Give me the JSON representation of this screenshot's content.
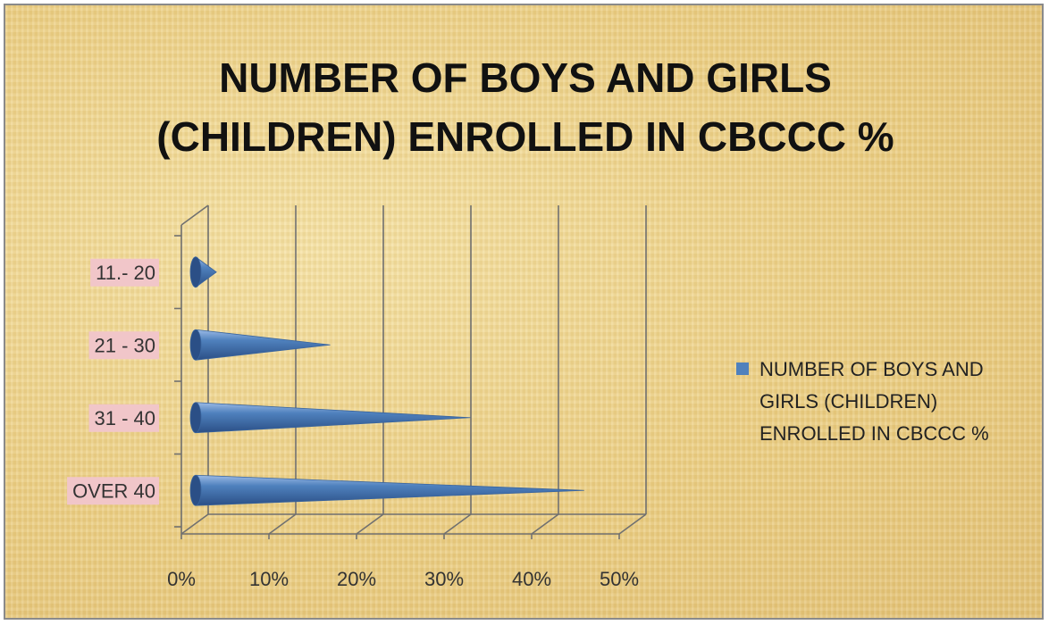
{
  "chart_data": {
    "type": "bar",
    "orientation": "horizontal",
    "bar_shape": "cone",
    "title_lines": [
      "NUMBER OF BOYS AND GIRLS",
      "(CHILDREN) ENROLLED IN CBCCC %"
    ],
    "categories": [
      "11.- 20",
      "21 - 30",
      "31 - 40",
      "OVER 40"
    ],
    "series": [
      {
        "name_lines": [
          "NUMBER OF BOYS AND",
          "GIRLS (CHILDREN)",
          "ENROLLED IN CBCCC %"
        ],
        "values": [
          4,
          17,
          33,
          46
        ]
      }
    ],
    "x_ticks": [
      "0%",
      "10%",
      "20%",
      "30%",
      "40%",
      "50%"
    ],
    "xlim": [
      0,
      50
    ],
    "grid": true,
    "legend_position": "right",
    "colors": {
      "series": "#4f81bd",
      "series_dark": "#2b4f86",
      "category_label_bg": "#f1c6c9",
      "grid": "#707070"
    }
  }
}
